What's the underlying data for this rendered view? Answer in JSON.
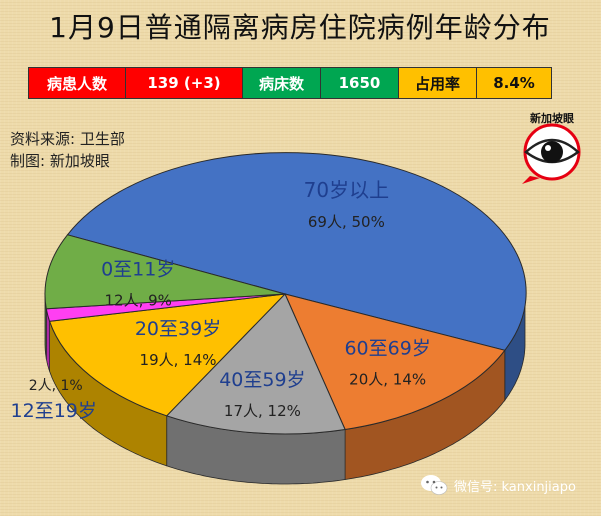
{
  "title": "1月9日普通隔离病房住院病例年龄分布",
  "stats": {
    "patients_label": "病患人数",
    "patients_value": "139 (+3)",
    "beds_label": "病床数",
    "beds_value": "1650",
    "occupancy_label": "占用率",
    "occupancy_value": "8.4%"
  },
  "colors": {
    "red": "#ff0000",
    "green": "#00a651",
    "yellow": "#ffc000"
  },
  "source": {
    "line1": "资料来源:  卫生部",
    "line2": "制图:  新加坡眼"
  },
  "logo": {
    "text": "新加坡眼",
    "icon": "eye-logo-icon"
  },
  "watermark": {
    "icon": "wechat-icon",
    "text": "微信号: kanxinjiapo"
  },
  "chart_data": {
    "type": "pie",
    "title": "1月9日普通隔离病房住院病例年龄分布",
    "slices": [
      {
        "name": "70岁以上",
        "count": 69,
        "count_label": "69人, 50%",
        "percent": 50,
        "color": "#4472c4"
      },
      {
        "name": "60至69岁",
        "count": 20,
        "count_label": "20人, 14%",
        "percent": 14,
        "color": "#ed7d31"
      },
      {
        "name": "40至59岁",
        "count": 17,
        "count_label": "17人, 12%",
        "percent": 12,
        "color": "#a5a5a5"
      },
      {
        "name": "20至39岁",
        "count": 19,
        "count_label": "19人, 14%",
        "percent": 14,
        "color": "#ffc000"
      },
      {
        "name": "12至19岁",
        "count": 2,
        "count_label": "2人, 1%",
        "percent": 1,
        "color": "#ff3ff2"
      },
      {
        "name": "0至11岁",
        "count": 12,
        "count_label": "12人, 9%",
        "percent": 9,
        "color": "#70ad47"
      }
    ]
  }
}
